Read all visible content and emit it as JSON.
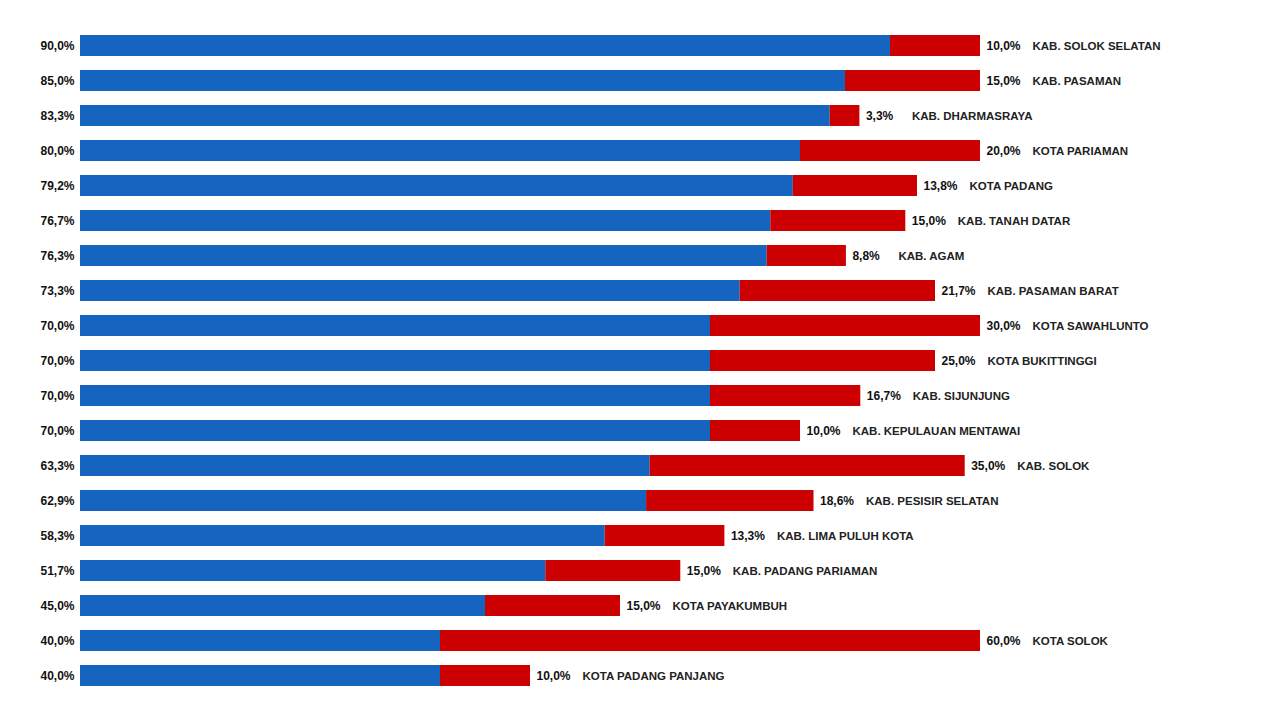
{
  "chart_data": {
    "type": "bar",
    "orientation": "horizontal",
    "stacked": true,
    "categories": [
      "KAB. SOLOK SELATAN",
      "KAB. PASAMAN",
      "KAB. DHARMASRAYA",
      "KOTA PARIAMAN",
      "KOTA PADANG",
      "KAB. TANAH DATAR",
      "KAB. AGAM",
      "KAB. PASAMAN BARAT",
      "KOTA SAWAHLUNTO",
      "KOTA BUKITTINGGI",
      "KAB. SIJUNJUNG",
      "KAB. KEPULAUAN MENTAWAI",
      "KAB. SOLOK",
      "KAB. PESISIR SELATAN",
      "KAB. LIMA PULUH KOTA",
      "KAB. PADANG PARIAMAN",
      "KOTA PAYAKUMBUH",
      "KOTA SOLOK",
      "KOTA PADANG PANJANG"
    ],
    "series": [
      {
        "color": "#1565C0",
        "values": [
          90.0,
          85.0,
          83.3,
          80.0,
          79.2,
          76.7,
          76.3,
          73.3,
          70.0,
          70.0,
          70.0,
          70.0,
          63.3,
          62.9,
          58.3,
          51.7,
          45.0,
          40.0,
          40.0
        ],
        "value_labels": [
          "90,0%",
          "85,0%",
          "83,3%",
          "80,0%",
          "79,2%",
          "76,7%",
          "76,3%",
          "73,3%",
          "70,0%",
          "70,0%",
          "70,0%",
          "70,0%",
          "63,3%",
          "62,9%",
          "58,3%",
          "51,7%",
          "45,0%",
          "40,0%",
          "40,0%"
        ]
      },
      {
        "color": "#CC0000",
        "values": [
          10.0,
          15.0,
          3.3,
          20.0,
          13.8,
          15.0,
          8.8,
          21.7,
          30.0,
          25.0,
          16.7,
          10.0,
          35.0,
          18.6,
          13.3,
          15.0,
          15.0,
          60.0,
          10.0
        ],
        "value_labels": [
          "10,0%",
          "15,0%",
          "3,3%",
          "20,0%",
          "13,8%",
          "15,0%",
          "8,8%",
          "21,7%",
          "30,0%",
          "25,0%",
          "16,7%",
          "10,0%",
          "35,0%",
          "18,6%",
          "13,3%",
          "15,0%",
          "15,0%",
          "60,0%",
          "10,0%"
        ]
      }
    ],
    "xlim": [
      0,
      100
    ],
    "data_labels": true,
    "tick_labels": false
  }
}
